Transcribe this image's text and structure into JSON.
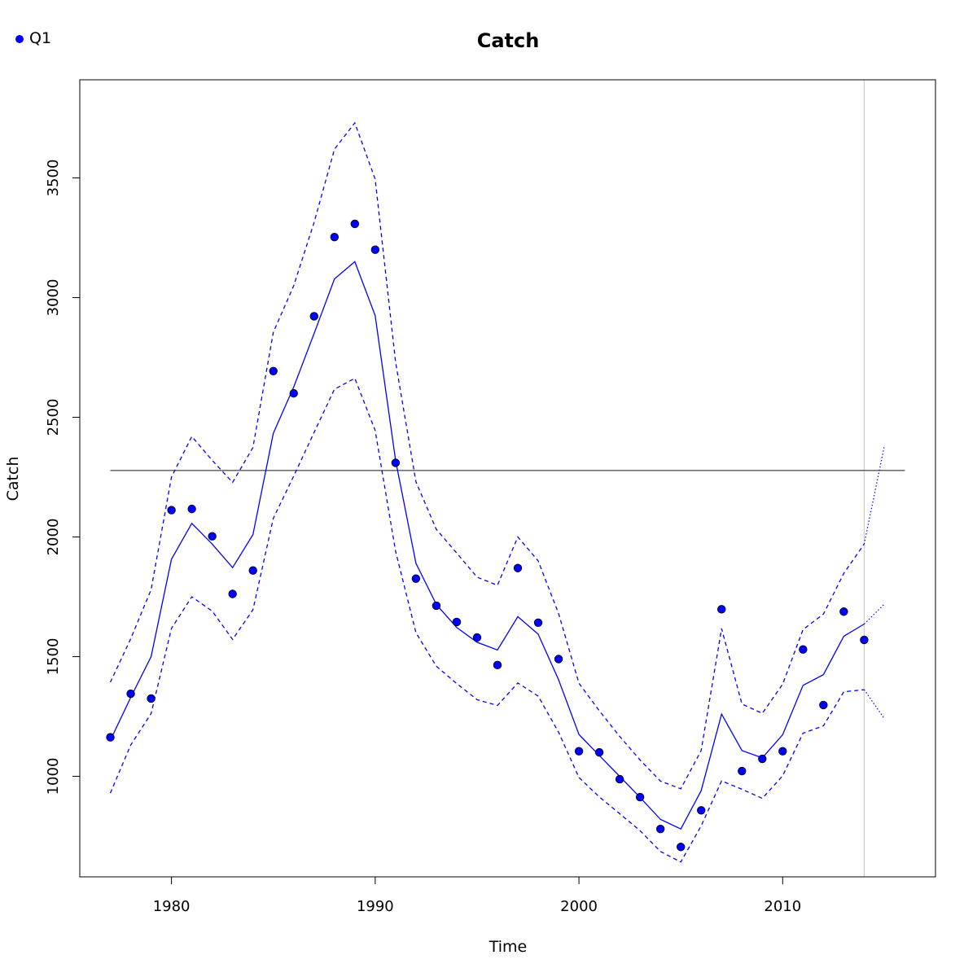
{
  "colors": {
    "series": "#0000ff",
    "reference": "#555555",
    "vline": "#cccccc",
    "axis": "#000000"
  },
  "chart_data": {
    "type": "line",
    "title": "Catch",
    "xlabel": "Time",
    "ylabel": "Catch",
    "xlim": [
      1975.5,
      2017.5
    ],
    "ylim": [
      580,
      3910
    ],
    "x_ticks": [
      1980,
      1990,
      2000,
      2010
    ],
    "y_ticks": [
      1000,
      1500,
      2000,
      2500,
      3000,
      3500
    ],
    "legend": {
      "placement": "top-left",
      "entries": [
        "Q1"
      ]
    },
    "reference_line": {
      "y": 2278,
      "x_from": 1977,
      "x_to": 2016
    },
    "vertical_line": {
      "x": 2014
    },
    "observed": {
      "name": "Q1",
      "x": [
        1977,
        1978,
        1979,
        1980,
        1981,
        1982,
        1983,
        1984,
        1985,
        1986,
        1987,
        1988,
        1989,
        1990,
        1991,
        1992,
        1993,
        1994,
        1995,
        1996,
        1997,
        1998,
        1999,
        2000,
        2001,
        2002,
        2003,
        2004,
        2005,
        2006,
        2007,
        2008,
        2009,
        2010,
        2011,
        2012,
        2013,
        2014
      ],
      "values": [
        1163,
        1345,
        1325,
        2112,
        2117,
        2003,
        1762,
        1860,
        2693,
        2600,
        2922,
        3253,
        3308,
        3200,
        2310,
        1826,
        1713,
        1645,
        1580,
        1465,
        1870,
        1642,
        1490,
        1105,
        1100,
        988,
        913,
        780,
        705,
        858,
        1698,
        1022,
        1073,
        1105,
        1530,
        1298,
        1688,
        1570
      ]
    },
    "fitted": {
      "x": [
        1977,
        1978,
        1979,
        1980,
        1981,
        1982,
        1983,
        1984,
        1985,
        1986,
        1987,
        1988,
        1989,
        1990,
        1991,
        1992,
        1993,
        1994,
        1995,
        1996,
        1997,
        1998,
        1999,
        2000,
        2001,
        2002,
        2003,
        2004,
        2005,
        2006,
        2007,
        2008,
        2009,
        2010,
        2011,
        2012,
        2013,
        2014
      ],
      "values": [
        1150,
        1330,
        1500,
        1907,
        2057,
        1970,
        1872,
        2010,
        2433,
        2627,
        2850,
        3078,
        3150,
        2925,
        2320,
        1890,
        1718,
        1622,
        1560,
        1528,
        1667,
        1594,
        1403,
        1175,
        1087,
        1000,
        912,
        820,
        780,
        940,
        1260,
        1108,
        1077,
        1174,
        1380,
        1425,
        1585,
        1636
      ]
    },
    "upper": {
      "x": [
        1977,
        1978,
        1979,
        1980,
        1981,
        1982,
        1983,
        1984,
        1985,
        1986,
        1987,
        1988,
        1989,
        1990,
        1991,
        1992,
        1993,
        1994,
        1995,
        1996,
        1997,
        1998,
        1999,
        2000,
        2001,
        2002,
        2003,
        2004,
        2005,
        2006,
        2007,
        2008,
        2009,
        2010,
        2011,
        2012,
        2013,
        2014
      ],
      "values": [
        1393,
        1575,
        1780,
        2250,
        2420,
        2320,
        2228,
        2374,
        2855,
        3050,
        3314,
        3620,
        3730,
        3495,
        2730,
        2230,
        2032,
        1933,
        1832,
        1798,
        2000,
        1900,
        1680,
        1389,
        1274,
        1167,
        1068,
        980,
        948,
        1108,
        1617,
        1302,
        1263,
        1385,
        1613,
        1678,
        1848,
        1970
      ]
    },
    "lower": {
      "x": [
        1977,
        1978,
        1979,
        1980,
        1981,
        1982,
        1983,
        1984,
        1985,
        1986,
        1987,
        1988,
        1989,
        1990,
        1991,
        1992,
        1993,
        1994,
        1995,
        1996,
        1997,
        1998,
        1999,
        2000,
        2001,
        2002,
        2003,
        2004,
        2005,
        2006,
        2007,
        2008,
        2009,
        2010,
        2011,
        2012,
        2013,
        2014
      ],
      "values": [
        930,
        1131,
        1262,
        1618,
        1750,
        1690,
        1572,
        1696,
        2078,
        2255,
        2437,
        2617,
        2663,
        2445,
        1940,
        1600,
        1460,
        1388,
        1320,
        1296,
        1390,
        1335,
        1184,
        995,
        914,
        844,
        773,
        686,
        642,
        793,
        981,
        946,
        908,
        1002,
        1180,
        1211,
        1353,
        1362
      ]
    },
    "forecast": {
      "x": [
        2014,
        2015
      ],
      "upper": [
        1970,
        2383
      ],
      "fitted": [
        1636,
        1720
      ],
      "lower": [
        1362,
        1240
      ]
    }
  }
}
